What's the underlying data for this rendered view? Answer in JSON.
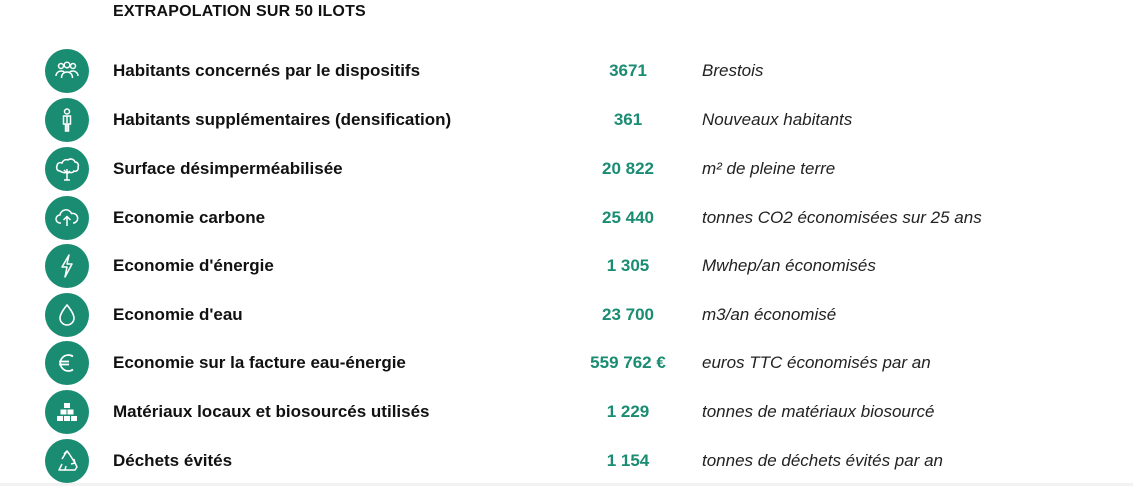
{
  "heading": "EXTRAPOLATION SUR 50 ILOTS",
  "accent_color": "#1a8c72",
  "rows": [
    {
      "icon": "people-group-icon",
      "label": "Habitants concernés par le dispositifs",
      "value": "3671",
      "unit": "Brestois"
    },
    {
      "icon": "person-icon",
      "label": "Habitants supplémentaires (densification)",
      "value": "361",
      "unit": "Nouveaux habitants"
    },
    {
      "icon": "tree-icon",
      "label": "Surface désimperméabilisée",
      "value": "20 822",
      "unit": "m² de pleine terre"
    },
    {
      "icon": "cloud-upload-icon",
      "label": "Economie carbone",
      "value": "25 440",
      "unit": "tonnes CO2 économisées sur 25 ans"
    },
    {
      "icon": "lightning-icon",
      "label": "Economie d'énergie",
      "value": "1 305",
      "unit": "Mwhep/an économisés"
    },
    {
      "icon": "water-drop-icon",
      "label": "Economie d'eau",
      "value": "23 700",
      "unit": "m3/an économisé"
    },
    {
      "icon": "euro-icon",
      "label": "Economie sur la facture eau-énergie",
      "value": "559 762 €",
      "unit": "euros TTC économisés par an"
    },
    {
      "icon": "stacked-blocks-icon",
      "label": "Matériaux locaux et biosourcés utilisés",
      "value": "1 229",
      "unit": "tonnes de matériaux biosourcé"
    },
    {
      "icon": "recycle-icon",
      "label": "Déchets évités",
      "value": "1 154",
      "unit": "tonnes de déchets évités par an"
    }
  ]
}
